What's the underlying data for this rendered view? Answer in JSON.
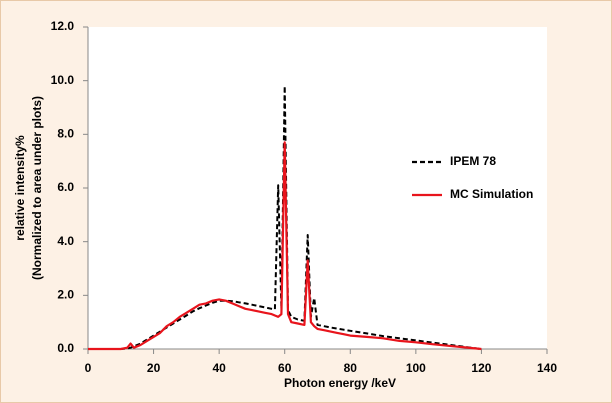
{
  "chart_data": {
    "type": "line",
    "y_label": [
      "relative intensity%",
      "(Normalized to area under plots)"
    ],
    "x_label": "Photon energy /keV",
    "x": [
      0,
      5,
      10,
      12,
      13,
      14,
      16,
      18,
      20,
      22,
      24,
      26,
      28,
      30,
      32,
      34,
      36,
      38,
      40,
      42,
      44,
      46,
      48,
      50,
      52,
      54,
      56,
      57,
      58,
      59,
      60,
      61,
      62,
      64,
      66,
      67,
      68,
      69,
      70,
      72,
      74,
      76,
      78,
      80,
      85,
      90,
      95,
      100,
      105,
      110,
      115,
      120
    ],
    "series": [
      {
        "name": "IPEM 78",
        "color": "#000000",
        "dash": true,
        "values": [
          0,
          0,
          0,
          0.02,
          0.05,
          0.1,
          0.2,
          0.35,
          0.5,
          0.65,
          0.8,
          0.95,
          1.1,
          1.25,
          1.4,
          1.52,
          1.62,
          1.72,
          1.8,
          1.8,
          1.78,
          1.74,
          1.7,
          1.65,
          1.6,
          1.55,
          1.5,
          1.48,
          6.1,
          1.5,
          9.8,
          1.45,
          1.2,
          1.1,
          1.05,
          4.25,
          1.2,
          1.9,
          0.9,
          0.85,
          0.8,
          0.76,
          0.72,
          0.68,
          0.58,
          0.48,
          0.4,
          0.32,
          0.24,
          0.16,
          0.08,
          0
        ]
      },
      {
        "name": "MC Simulation",
        "color": "#e8141c",
        "dash": false,
        "values": [
          0,
          0,
          0,
          0.05,
          0.2,
          0.05,
          0.15,
          0.3,
          0.45,
          0.6,
          0.85,
          1.0,
          1.2,
          1.35,
          1.5,
          1.65,
          1.7,
          1.8,
          1.85,
          1.8,
          1.7,
          1.6,
          1.5,
          1.45,
          1.4,
          1.35,
          1.3,
          1.25,
          1.2,
          1.3,
          7.7,
          1.3,
          1.0,
          0.95,
          0.9,
          3.3,
          1.0,
          0.85,
          0.75,
          0.7,
          0.65,
          0.6,
          0.55,
          0.5,
          0.45,
          0.4,
          0.3,
          0.25,
          0.18,
          0.12,
          0.06,
          0
        ]
      }
    ],
    "xlim": [
      0,
      140
    ],
    "xticks": [
      0,
      20,
      40,
      60,
      80,
      100,
      120,
      140
    ],
    "ylim": [
      0,
      12
    ],
    "yticks": [
      {
        "value": 0,
        "label": "0.0"
      },
      {
        "value": 2,
        "label": "2.0"
      },
      {
        "value": 4,
        "label": "4.0"
      },
      {
        "value": 6,
        "label": "6.0"
      },
      {
        "value": 8,
        "label": "8.0"
      },
      {
        "value": 10,
        "label": "10.0"
      },
      {
        "value": 12,
        "label": "12.0"
      }
    ],
    "legend": "right",
    "grid": false
  }
}
